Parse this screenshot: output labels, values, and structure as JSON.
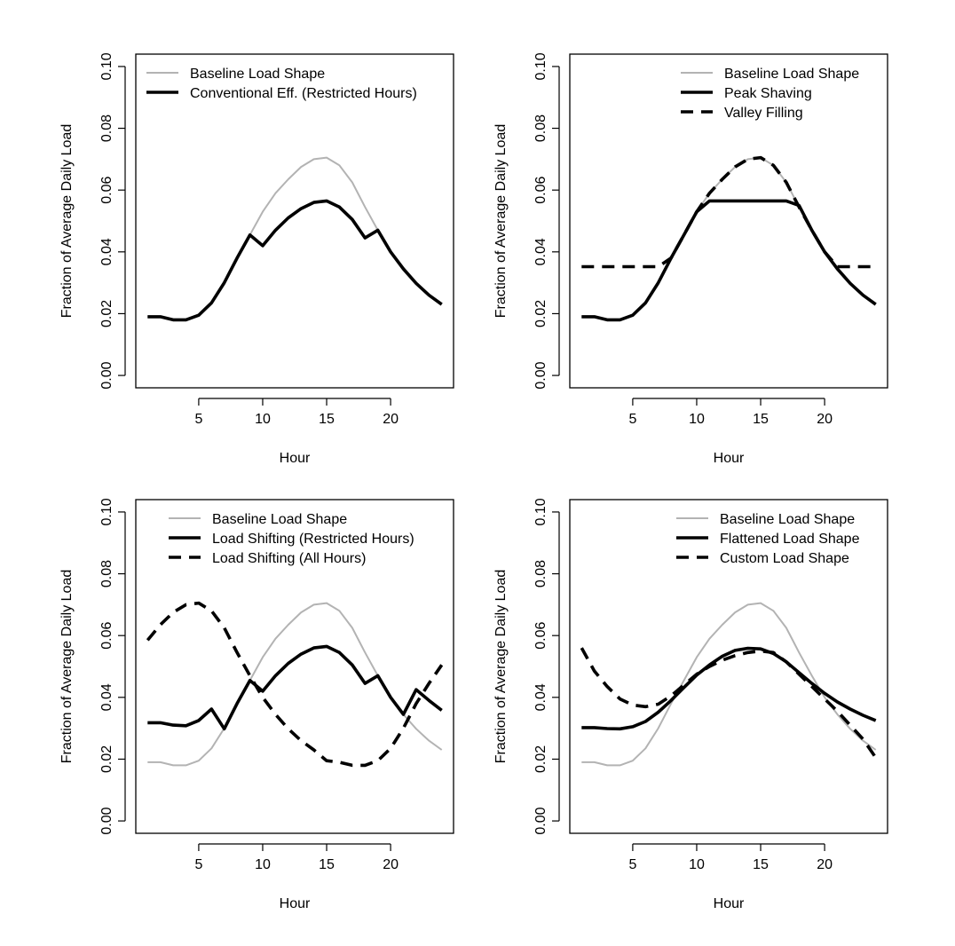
{
  "chart_data": [
    {
      "type": "line",
      "xlabel": "Hour",
      "ylabel": "Fraction of Average Daily Load",
      "xlim": [
        1,
        24
      ],
      "ylim": [
        0,
        0.1
      ],
      "x_ticks": [
        5,
        10,
        15,
        20
      ],
      "y_ticks": [
        "0.00",
        "0.02",
        "0.04",
        "0.06",
        "0.08",
        "0.10"
      ],
      "legend_position": "top-left",
      "x": [
        1,
        2,
        3,
        4,
        5,
        6,
        7,
        8,
        9,
        10,
        11,
        12,
        13,
        14,
        15,
        16,
        17,
        18,
        19,
        20,
        21,
        22,
        23,
        24
      ],
      "series": [
        {
          "name": "Baseline Load Shape",
          "color": "#b3b3b3",
          "style": "solid",
          "values": [
            0.019,
            0.019,
            0.018,
            0.018,
            0.0195,
            0.0235,
            0.03,
            0.038,
            0.0455,
            0.053,
            0.059,
            0.0635,
            0.0675,
            0.07,
            0.0705,
            0.068,
            0.0625,
            0.0545,
            0.047,
            0.04,
            0.0345,
            0.0298,
            0.026,
            0.023
          ]
        },
        {
          "name": "Conventional Eff. (Restricted Hours)",
          "color": "#000000",
          "style": "solid",
          "values": [
            0.019,
            0.019,
            0.018,
            0.018,
            0.0195,
            0.0235,
            0.03,
            0.038,
            0.0455,
            0.042,
            0.047,
            0.051,
            0.054,
            0.056,
            0.0565,
            0.0545,
            0.0505,
            0.0445,
            0.047,
            0.04,
            0.0345,
            0.0298,
            0.026,
            0.023
          ]
        }
      ]
    },
    {
      "type": "line",
      "xlabel": "Hour",
      "ylabel": "Fraction of Average Daily Load",
      "xlim": [
        1,
        24
      ],
      "ylim": [
        0,
        0.1
      ],
      "x_ticks": [
        5,
        10,
        15,
        20
      ],
      "y_ticks": [
        "0.00",
        "0.02",
        "0.04",
        "0.06",
        "0.08",
        "0.10"
      ],
      "legend_position": "top-right",
      "x": [
        1,
        2,
        3,
        4,
        5,
        6,
        7,
        8,
        9,
        10,
        11,
        12,
        13,
        14,
        15,
        16,
        17,
        18,
        19,
        20,
        21,
        22,
        23,
        24
      ],
      "series": [
        {
          "name": "Baseline Load Shape",
          "color": "#b3b3b3",
          "style": "solid",
          "values": [
            0.019,
            0.019,
            0.018,
            0.018,
            0.0195,
            0.0235,
            0.03,
            0.038,
            0.0455,
            0.053,
            0.059,
            0.0635,
            0.0675,
            0.07,
            0.0705,
            0.068,
            0.0625,
            0.0545,
            0.047,
            0.04,
            0.0345,
            0.0298,
            0.026,
            0.023
          ]
        },
        {
          "name": "Peak Shaving",
          "color": "#000000",
          "style": "solid",
          "values": [
            0.019,
            0.019,
            0.018,
            0.018,
            0.0195,
            0.0235,
            0.03,
            0.038,
            0.0455,
            0.053,
            0.0565,
            0.0565,
            0.0565,
            0.0565,
            0.0565,
            0.0565,
            0.0565,
            0.055,
            0.047,
            0.04,
            0.0345,
            0.0298,
            0.026,
            0.023
          ]
        },
        {
          "name": "Valley Filling",
          "color": "#000000",
          "style": "dashed",
          "values": [
            0.0352,
            0.0352,
            0.0352,
            0.0352,
            0.0352,
            0.0352,
            0.0352,
            0.038,
            0.0455,
            0.053,
            0.059,
            0.0635,
            0.0675,
            0.07,
            0.0705,
            0.068,
            0.0625,
            0.0545,
            0.047,
            0.04,
            0.0352,
            0.0352,
            0.0352,
            0.0352
          ]
        }
      ]
    },
    {
      "type": "line",
      "xlabel": "Hour",
      "ylabel": "Fraction of Average Daily Load",
      "xlim": [
        1,
        24
      ],
      "ylim": [
        0,
        0.1
      ],
      "x_ticks": [
        5,
        10,
        15,
        20
      ],
      "y_ticks": [
        "0.00",
        "0.02",
        "0.04",
        "0.06",
        "0.08",
        "0.10"
      ],
      "legend_position": "top",
      "x": [
        1,
        2,
        3,
        4,
        5,
        6,
        7,
        8,
        9,
        10,
        11,
        12,
        13,
        14,
        15,
        16,
        17,
        18,
        19,
        20,
        21,
        22,
        23,
        24
      ],
      "series": [
        {
          "name": "Baseline Load Shape",
          "color": "#b3b3b3",
          "style": "solid",
          "values": [
            0.019,
            0.019,
            0.018,
            0.018,
            0.0195,
            0.0235,
            0.03,
            0.038,
            0.0455,
            0.053,
            0.059,
            0.0635,
            0.0675,
            0.07,
            0.0705,
            0.068,
            0.0625,
            0.0545,
            0.047,
            0.04,
            0.0345,
            0.0298,
            0.026,
            0.023
          ]
        },
        {
          "name": "Load Shifting (Restricted Hours)",
          "color": "#000000",
          "style": "solid",
          "values": [
            0.0318,
            0.0318,
            0.031,
            0.0308,
            0.0325,
            0.0362,
            0.0298,
            0.038,
            0.0455,
            0.042,
            0.047,
            0.051,
            0.054,
            0.056,
            0.0565,
            0.0545,
            0.0505,
            0.0445,
            0.047,
            0.04,
            0.0345,
            0.0425,
            0.039,
            0.0358
          ]
        },
        {
          "name": "Load Shifting (All Hours)",
          "color": "#000000",
          "style": "dashed",
          "values": [
            0.0585,
            0.0635,
            0.0675,
            0.07,
            0.0705,
            0.068,
            0.0625,
            0.0545,
            0.047,
            0.04,
            0.0345,
            0.0298,
            0.026,
            0.023,
            0.0195,
            0.019,
            0.018,
            0.018,
            0.0195,
            0.0235,
            0.03,
            0.038,
            0.0445,
            0.0505
          ]
        }
      ]
    },
    {
      "type": "line",
      "xlabel": "Hour",
      "ylabel": "Fraction of Average Daily Load",
      "xlim": [
        1,
        24
      ],
      "ylim": [
        0,
        0.1
      ],
      "x_ticks": [
        5,
        10,
        15,
        20
      ],
      "y_ticks": [
        "0.00",
        "0.02",
        "0.04",
        "0.06",
        "0.08",
        "0.10"
      ],
      "legend_position": "top-right",
      "x": [
        1,
        2,
        3,
        4,
        5,
        6,
        7,
        8,
        9,
        10,
        11,
        12,
        13,
        14,
        15,
        16,
        17,
        18,
        19,
        20,
        21,
        22,
        23,
        24
      ],
      "series": [
        {
          "name": "Baseline Load Shape",
          "color": "#b3b3b3",
          "style": "solid",
          "values": [
            0.019,
            0.019,
            0.018,
            0.018,
            0.0195,
            0.0235,
            0.03,
            0.038,
            0.0455,
            0.053,
            0.059,
            0.0635,
            0.0675,
            0.07,
            0.0705,
            0.068,
            0.0625,
            0.0545,
            0.047,
            0.04,
            0.0345,
            0.0298,
            0.026,
            0.023
          ]
        },
        {
          "name": "Flattened Load Shape",
          "color": "#000000",
          "style": "solid",
          "values": [
            0.0302,
            0.0302,
            0.0299,
            0.0298,
            0.0305,
            0.0322,
            0.0352,
            0.039,
            0.0432,
            0.0472,
            0.0505,
            0.0533,
            0.0552,
            0.0559,
            0.0557,
            0.0542,
            0.0515,
            0.048,
            0.0445,
            0.0413,
            0.0385,
            0.0362,
            0.0342,
            0.0325
          ]
        },
        {
          "name": "Custom Load Shape",
          "color": "#000000",
          "style": "dashed",
          "values": [
            0.056,
            0.0485,
            0.0435,
            0.0395,
            0.0375,
            0.037,
            0.0378,
            0.0405,
            0.044,
            0.0475,
            0.05,
            0.052,
            0.0535,
            0.0545,
            0.055,
            0.0545,
            0.0515,
            0.0475,
            0.0435,
            0.0395,
            0.0355,
            0.031,
            0.0265,
            0.0205
          ]
        }
      ]
    }
  ]
}
